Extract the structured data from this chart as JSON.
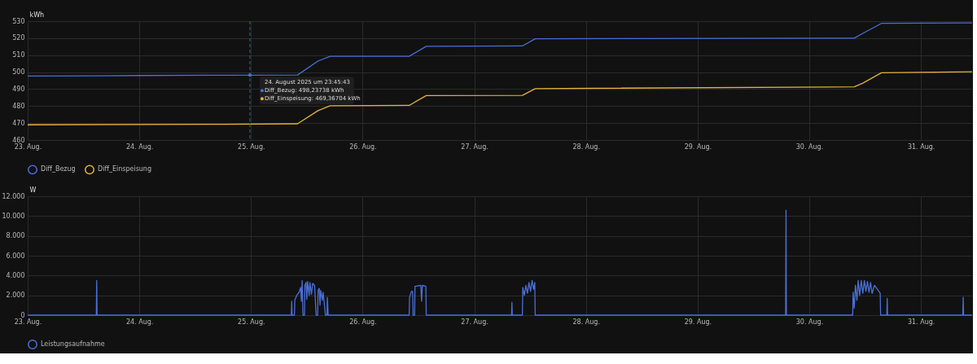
{
  "chart_data": [
    {
      "type": "line",
      "ylabel": "kWh",
      "xlim": [
        "2025-08-23T00:00",
        "2025-08-31T11:00"
      ],
      "ylim": [
        460,
        530
      ],
      "yticks": [
        460,
        470,
        480,
        490,
        500,
        510,
        520,
        530
      ],
      "xticks": [
        {
          "value": "2025-08-23T00:00",
          "label": "23. Aug."
        },
        {
          "value": "2025-08-24T00:00",
          "label": "24. Aug."
        },
        {
          "value": "2025-08-25T00:00",
          "label": "25. Aug."
        },
        {
          "value": "2025-08-26T00:00",
          "label": "26. Aug."
        },
        {
          "value": "2025-08-27T00:00",
          "label": "27. Aug."
        },
        {
          "value": "2025-08-28T00:00",
          "label": "28. Aug."
        },
        {
          "value": "2025-08-29T00:00",
          "label": "29. Aug."
        },
        {
          "value": "2025-08-30T00:00",
          "label": "30. Aug."
        },
        {
          "value": "2025-08-31T00:00",
          "label": "31. Aug."
        }
      ],
      "grid": true,
      "legend": "bottom",
      "marker": "none",
      "line_style": "solid",
      "series": [
        {
          "name": "Diff_Bezug",
          "color": "#4a6fd8",
          "x": [
            "2025-08-23T00:00",
            "2025-08-23T15:00",
            "2025-08-24T00:00",
            "2025-08-24T18:00",
            "2025-08-25T10:00",
            "2025-08-25T14:24",
            "2025-08-25T17:00",
            "2025-08-26T10:00",
            "2025-08-26T13:40",
            "2025-08-27T10:20",
            "2025-08-27T13:06",
            "2025-08-30T09:40",
            "2025-08-30T11:30",
            "2025-08-30T15:30",
            "2025-08-31T11:00"
          ],
          "values": [
            497.7,
            497.8,
            498.0,
            498.2,
            498.3,
            506.5,
            509.3,
            509.3,
            515.2,
            515.4,
            519.6,
            520.0,
            522.8,
            528.7,
            529.0
          ]
        },
        {
          "name": "Diff_Einspeisung",
          "color": "#e6b23c",
          "x": [
            "2025-08-23T00:00",
            "2025-08-24T18:00",
            "2025-08-25T10:00",
            "2025-08-25T14:24",
            "2025-08-25T17:00",
            "2025-08-26T10:00",
            "2025-08-26T13:40",
            "2025-08-27T10:20",
            "2025-08-27T13:06",
            "2025-08-30T09:40",
            "2025-08-30T11:30",
            "2025-08-30T15:30",
            "2025-08-31T11:00"
          ],
          "values": [
            469.0,
            469.3,
            469.6,
            477.3,
            480.2,
            480.4,
            486.2,
            486.3,
            490.3,
            491.3,
            493.5,
            499.6,
            500.2
          ]
        }
      ],
      "ref_lines": [
        {
          "axis": "x",
          "value": "2025-08-24T23:45:43",
          "line_style": "dashed",
          "color": "#2c6a88"
        }
      ],
      "annotations": [
        {
          "text": "24. August 2025 um 23:45:43",
          "x": "2025-08-24T23:45:43",
          "y": 498.23738
        },
        "Diff_Bezug: 498,23738 kWh",
        "Diff_Einspeisung: 469,36704 kWh"
      ]
    },
    {
      "type": "line",
      "ylabel": "W",
      "xlim": [
        "2025-08-23T00:00",
        "2025-08-31T11:00"
      ],
      "ylim": [
        0,
        12000
      ],
      "yticks": [
        0,
        {
          "value": 2000,
          "label": "2.000"
        },
        {
          "value": 4000,
          "label": "4.000"
        },
        {
          "value": 6000,
          "label": "6.000"
        },
        {
          "value": 8000,
          "label": "8.000"
        },
        {
          "value": 10000,
          "label": "10.000"
        },
        {
          "value": 12000,
          "label": "12.000"
        }
      ],
      "xticks": [
        {
          "value": "2025-08-23T00:00",
          "label": "23. Aug."
        },
        {
          "value": "2025-08-24T00:00",
          "label": "24. Aug."
        },
        {
          "value": "2025-08-25T00:00",
          "label": "25. Aug."
        },
        {
          "value": "2025-08-26T00:00",
          "label": "26. Aug."
        },
        {
          "value": "2025-08-27T00:00",
          "label": "27. Aug."
        },
        {
          "value": "2025-08-28T00:00",
          "label": "28. Aug."
        },
        {
          "value": "2025-08-29T00:00",
          "label": "29. Aug."
        },
        {
          "value": "2025-08-30T00:00",
          "label": "30. Aug."
        },
        {
          "value": "2025-08-31T00:00",
          "label": "31. Aug."
        }
      ],
      "grid": true,
      "legend": "bottom",
      "marker": "none",
      "line_style": "solid",
      "series": [
        {
          "name": "Leistungsaufnahme",
          "color": "#4a6fd8",
          "x": [
            "2025-08-23T00:00",
            "2025-08-23T14:45",
            "2025-08-23T14:50",
            "2025-08-23T14:55",
            "2025-08-25T08:40",
            "2025-08-25T08:45",
            "2025-08-25T08:50",
            "2025-08-25T09:20",
            "2025-08-25T09:25",
            "2025-08-25T09:50",
            "2025-08-25T10:20",
            "2025-08-25T10:40",
            "2025-08-25T10:50",
            "2025-08-25T11:00",
            "2025-08-25T11:10",
            "2025-08-25T11:30",
            "2025-08-25T11:35",
            "2025-08-25T11:50",
            "2025-08-25T12:00",
            "2025-08-25T12:10",
            "2025-08-25T12:30",
            "2025-08-25T12:40",
            "2025-08-25T13:00",
            "2025-08-25T13:15",
            "2025-08-25T13:40",
            "2025-08-25T13:50",
            "2025-08-25T14:00",
            "2025-08-25T14:20",
            "2025-08-25T14:25",
            "2025-08-25T14:40",
            "2025-08-25T14:50",
            "2025-08-25T15:00",
            "2025-08-25T15:20",
            "2025-08-25T15:30",
            "2025-08-25T15:45",
            "2025-08-25T16:00",
            "2025-08-25T16:20",
            "2025-08-25T16:25",
            "2025-08-25T16:35",
            "2025-08-26T10:00",
            "2025-08-26T10:05",
            "2025-08-26T10:30",
            "2025-08-26T10:45",
            "2025-08-26T10:50",
            "2025-08-26T11:10",
            "2025-08-26T11:15",
            "2025-08-26T12:30",
            "2025-08-26T12:40",
            "2025-08-26T12:50",
            "2025-08-26T13:35",
            "2025-08-26T13:40",
            "2025-08-27T08:00",
            "2025-08-27T08:05",
            "2025-08-27T08:10",
            "2025-08-27T10:20",
            "2025-08-27T10:25",
            "2025-08-27T10:45",
            "2025-08-27T11:05",
            "2025-08-27T11:25",
            "2025-08-27T11:45",
            "2025-08-27T12:05",
            "2025-08-27T12:25",
            "2025-08-27T12:45",
            "2025-08-27T13:00",
            "2025-08-27T13:05",
            "2025-08-29T18:55",
            "2025-08-29T19:00",
            "2025-08-29T19:05",
            "2025-08-30T09:20",
            "2025-08-30T09:25",
            "2025-08-30T09:40",
            "2025-08-30T09:55",
            "2025-08-30T10:15",
            "2025-08-30T10:30",
            "2025-08-30T10:50",
            "2025-08-30T11:10",
            "2025-08-30T11:30",
            "2025-08-30T11:50",
            "2025-08-30T12:10",
            "2025-08-30T12:30",
            "2025-08-30T12:50",
            "2025-08-30T13:10",
            "2025-08-30T13:30",
            "2025-08-30T14:00",
            "2025-08-30T14:30",
            "2025-08-30T15:15",
            "2025-08-30T15:20",
            "2025-08-30T16:40",
            "2025-08-30T16:45",
            "2025-08-30T16:50",
            "2025-08-31T09:00",
            "2025-08-31T09:05",
            "2025-08-31T09:10",
            "2025-08-31T11:00"
          ],
          "values": [
            0,
            0,
            3500,
            0,
            0,
            1400,
            0,
            0,
            1500,
            2000,
            2300,
            2800,
            1400,
            3500,
            0,
            0,
            3000,
            3300,
            1600,
            3400,
            2000,
            3300,
            2100,
            3200,
            3000,
            1500,
            0,
            0,
            2500,
            2700,
            1000,
            2500,
            1500,
            2300,
            1200,
            0,
            0,
            1800,
            0,
            0,
            1800,
            2400,
            2400,
            0,
            0,
            2900,
            3000,
            1400,
            3000,
            2900,
            0,
            0,
            1300,
            0,
            0,
            2800,
            2000,
            3000,
            2200,
            3300,
            2400,
            3500,
            2600,
            3300,
            0,
            0,
            10600,
            0,
            0,
            2300,
            700,
            3000,
            1500,
            3500,
            2000,
            3500,
            2200,
            3500,
            2400,
            3400,
            2300,
            3300,
            2200,
            3000,
            2700,
            2200,
            0,
            0,
            1700,
            0,
            0,
            1800,
            0,
            0
          ]
        }
      ]
    }
  ]
}
